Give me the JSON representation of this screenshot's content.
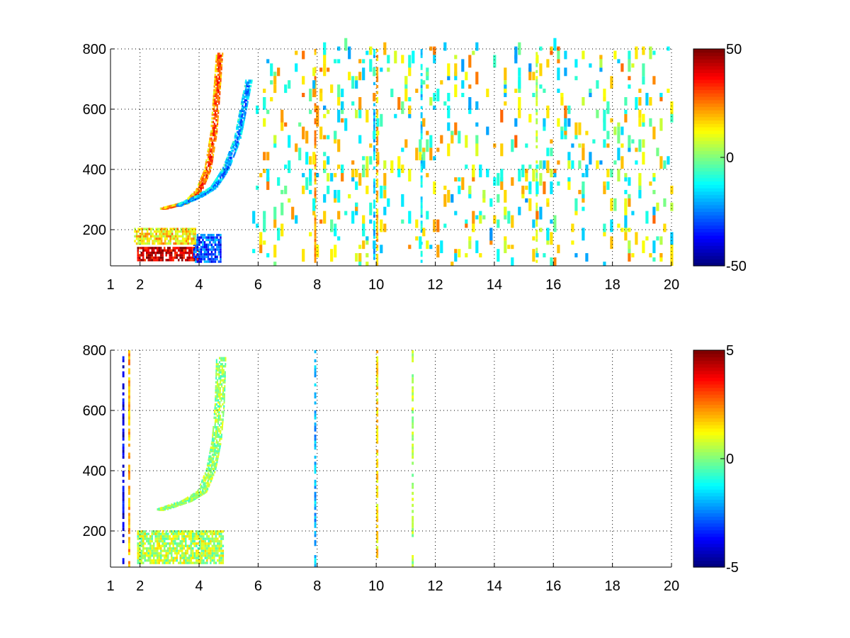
{
  "chart_data": [
    {
      "type": "heatmap",
      "title": "",
      "xlabel": "",
      "ylabel": "",
      "xlim": [
        1,
        20
      ],
      "ylim": [
        80,
        800
      ],
      "xticks": [
        1,
        2,
        4,
        6,
        8,
        10,
        12,
        14,
        16,
        18,
        20
      ],
      "yticks": [
        200,
        400,
        600,
        800
      ],
      "grid": true,
      "colormap": "jet",
      "clim": [
        -50,
        50
      ],
      "colorbar_ticks": [
        -50,
        0,
        50
      ],
      "colors": {
        "low": "#00008f",
        "mid": "#7fff7f",
        "high": "#800000"
      },
      "features": [
        {
          "kind": "band",
          "x": [
            1.9,
            4.0
          ],
          "y": [
            95,
            140
          ],
          "value": 42
        },
        {
          "kind": "band",
          "x": [
            3.8,
            4.7
          ],
          "y": [
            90,
            180
          ],
          "value": -30
        },
        {
          "kind": "band",
          "x": [
            1.8,
            3.9
          ],
          "y": [
            150,
            200
          ],
          "value": 15
        },
        {
          "kind": "curve",
          "points": [
            [
              2.8,
              270
            ],
            [
              3.6,
              290
            ],
            [
              4.0,
              330
            ],
            [
              4.3,
              400
            ],
            [
              4.5,
              520
            ],
            [
              4.6,
              650
            ],
            [
              4.7,
              790
            ]
          ],
          "width_x": 0.25,
          "value": 35
        },
        {
          "kind": "curve",
          "points": [
            [
              3.3,
              280
            ],
            [
              4.0,
              310
            ],
            [
              4.5,
              340
            ],
            [
              4.9,
              400
            ],
            [
              5.3,
              500
            ],
            [
              5.5,
              600
            ],
            [
              5.7,
              700
            ]
          ],
          "width_x": 0.25,
          "value": -28
        },
        {
          "kind": "vline",
          "x": 7.9,
          "value": 22
        },
        {
          "kind": "vline",
          "x": 9.9,
          "value": -18
        },
        {
          "kind": "vline",
          "x": 10.0,
          "value": 18
        },
        {
          "kind": "vline",
          "x": 11.5,
          "value": -15
        },
        {
          "kind": "vline",
          "x": 15.4,
          "value": 5
        },
        {
          "kind": "scatter",
          "x": [
            5.8,
            20
          ],
          "y": [
            80,
            800
          ],
          "density": 0.3
        }
      ]
    },
    {
      "type": "heatmap",
      "title": "",
      "xlabel": "",
      "ylabel": "",
      "xlim": [
        1,
        20
      ],
      "ylim": [
        80,
        800
      ],
      "xticks": [
        1,
        2,
        4,
        6,
        8,
        10,
        12,
        14,
        16,
        18,
        20
      ],
      "yticks": [
        200,
        400,
        600,
        800
      ],
      "grid": true,
      "colormap": "jet",
      "clim": [
        -5,
        5
      ],
      "colorbar_ticks": [
        -5,
        0,
        5
      ],
      "colors": {
        "low": "#00008f",
        "mid": "#7fff7f",
        "high": "#800000"
      },
      "features": [
        {
          "kind": "band",
          "x": [
            1.9,
            4.8
          ],
          "y": [
            90,
            200
          ],
          "value": 0.5
        },
        {
          "kind": "curve",
          "points": [
            [
              2.7,
              270
            ],
            [
              3.6,
              300
            ],
            [
              4.1,
              330
            ],
            [
              4.4,
              400
            ],
            [
              4.6,
              500
            ],
            [
              4.7,
              620
            ],
            [
              4.75,
              780
            ]
          ],
          "width_x": 0.35,
          "value": 0.3
        },
        {
          "kind": "vline",
          "x": 1.4,
          "value": -4
        },
        {
          "kind": "vline",
          "x": 1.6,
          "value": 2
        },
        {
          "kind": "vline",
          "x": 7.9,
          "value": -2
        },
        {
          "kind": "vline",
          "x": 10.0,
          "value": 1.5
        },
        {
          "kind": "vline",
          "x": 11.2,
          "value": 0.5
        }
      ]
    }
  ]
}
